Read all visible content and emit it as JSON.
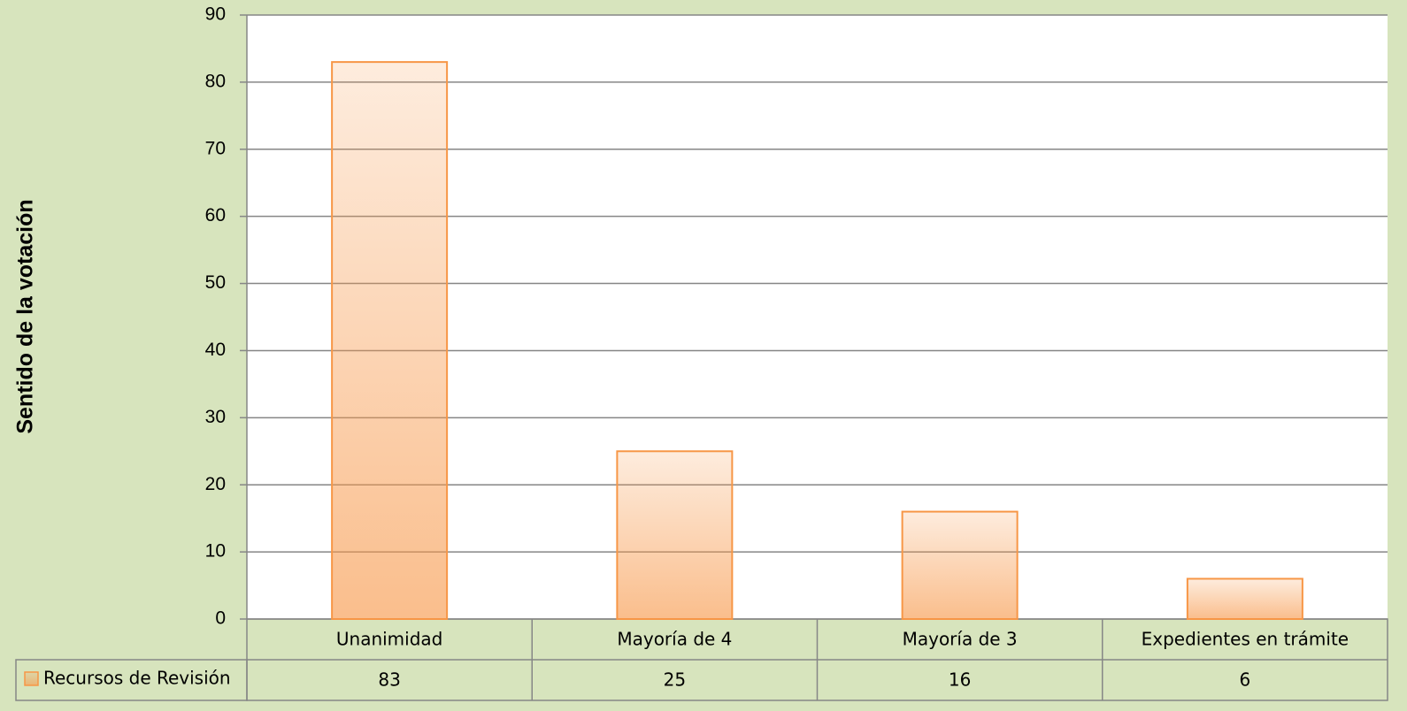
{
  "chart_data": {
    "type": "bar",
    "y_label": "Sentido de la votación",
    "categories": [
      "Unanimidad",
      "Mayoría de 4",
      "Mayoría de 3",
      "Expedientes en trámite"
    ],
    "series": [
      {
        "name": "Recursos de Revisión",
        "color": "#f79646",
        "values": [
          83,
          25,
          16,
          6
        ]
      }
    ],
    "ylim": [
      0,
      90
    ],
    "yticks": [
      0,
      10,
      20,
      30,
      40,
      50,
      60,
      70,
      80,
      90
    ],
    "grid": true
  }
}
